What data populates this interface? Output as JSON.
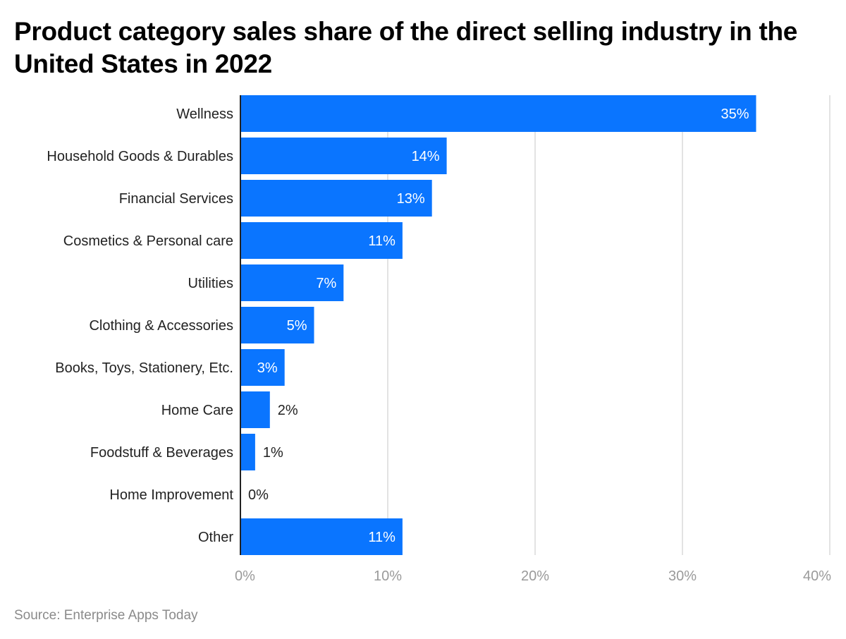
{
  "title": "Product category sales share of the direct selling industry in the United States in 2022",
  "source": "Source: Enterprise Apps Today",
  "chart_data": {
    "type": "bar",
    "orientation": "horizontal",
    "title": "Product category sales share of the direct selling industry in the United States in 2022",
    "categories": [
      "Wellness",
      "Household Goods & Durables",
      "Financial Services",
      "Cosmetics & Personal care",
      "Utilities",
      "Clothing & Accessories",
      "Books, Toys, Stationery, Etc.",
      "Home Care",
      "Foodstuff & Beverages",
      "Home Improvement",
      "Other"
    ],
    "values": [
      35,
      14,
      13,
      11,
      7,
      5,
      3,
      2,
      1,
      0,
      11
    ],
    "value_labels": [
      "35%",
      "14%",
      "13%",
      "11%",
      "7%",
      "5%",
      "3%",
      "2%",
      "1%",
      "0%",
      "11%"
    ],
    "xlim": [
      0,
      40
    ],
    "xticks": [
      0,
      10,
      20,
      30,
      40
    ],
    "xtick_labels": [
      "0%",
      "10%",
      "20%",
      "30%",
      "40%"
    ],
    "xlabel": "",
    "ylabel": "",
    "grid": true,
    "bar_color": "#0a75ff",
    "source": "Source: Enterprise Apps Today"
  }
}
